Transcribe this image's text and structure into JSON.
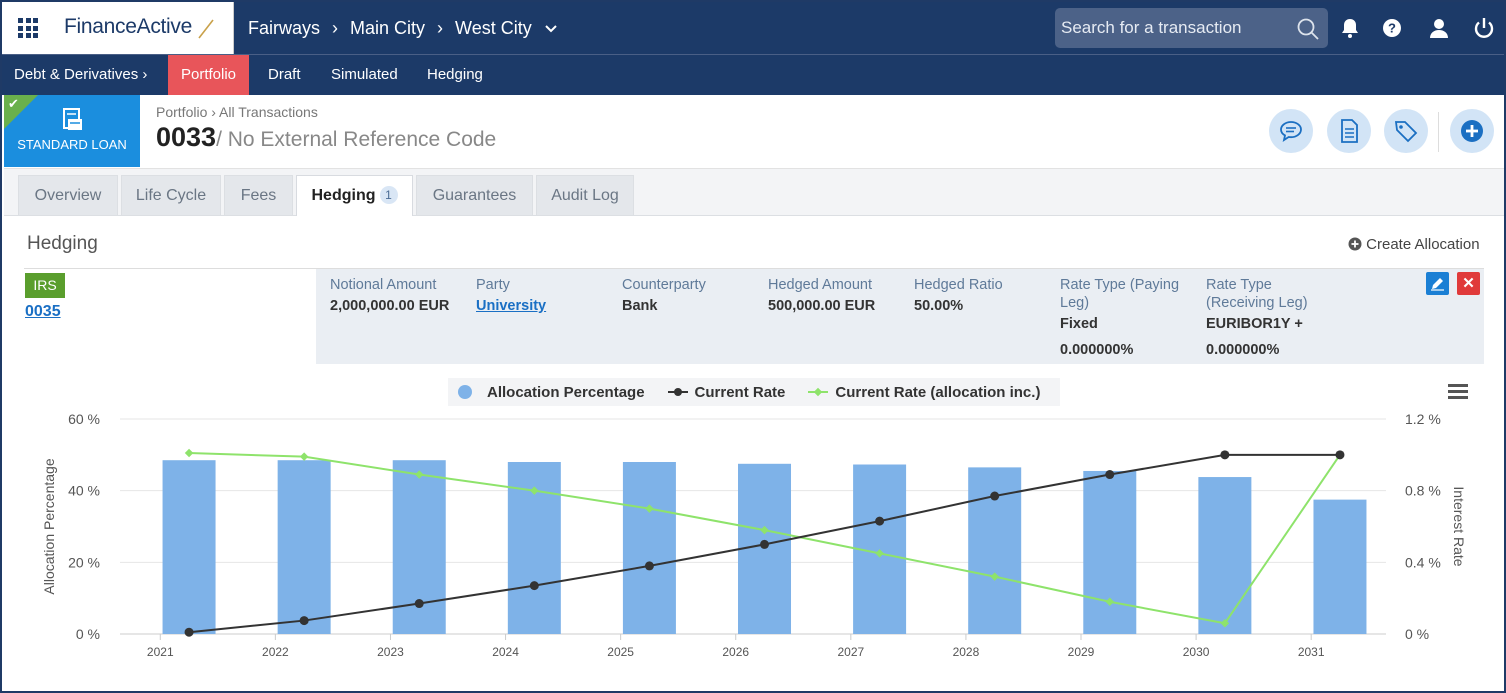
{
  "app": {
    "logo": "FinanceActive",
    "breadcrumb": [
      "Fairways",
      "Main City",
      "West City"
    ]
  },
  "search": {
    "placeholder": "Search for a transaction"
  },
  "nav": {
    "module": "Debt & Derivatives",
    "items": [
      "Portfolio",
      "Draft",
      "Simulated",
      "Hedging"
    ],
    "active": "Portfolio"
  },
  "header": {
    "badge": "STANDARD LOAN",
    "breadcrumb": "Portfolio › All Transactions",
    "code": "0033",
    "subtitle": "/ No External Reference Code"
  },
  "tabs": [
    {
      "label": "Overview"
    },
    {
      "label": "Life Cycle"
    },
    {
      "label": "Fees"
    },
    {
      "label": "Hedging",
      "count": "1"
    },
    {
      "label": "Guarantees"
    },
    {
      "label": "Audit Log"
    }
  ],
  "section": {
    "title": "Hedging",
    "create": "Create Allocation"
  },
  "hedge": {
    "type": "IRS",
    "id": "0035",
    "fields": [
      {
        "label": "Notional Amount",
        "value": "2,000,000.00 EUR"
      },
      {
        "label": "Party",
        "value": "University"
      },
      {
        "label": "Counterparty",
        "value": "Bank"
      },
      {
        "label": "Hedged Amount",
        "value": "500,000.00 EUR"
      },
      {
        "label": "Hedged Ratio",
        "value": "50.00%"
      },
      {
        "label": "Rate Type (Paying Leg)",
        "value": "Fixed",
        "value2": "0.000000%"
      },
      {
        "label": "Rate Type (Receiving Leg)",
        "value": "EURIBOR1Y +",
        "value2": "0.000000%"
      }
    ]
  },
  "colors": {
    "navy": "#1c3a68",
    "active": "#e8555a",
    "bar": "#7eb2e8",
    "rate": "#333333",
    "alloc_rate": "#8ee36b"
  },
  "chart_data": {
    "type": "bar",
    "categories": [
      "2021",
      "2022",
      "2023",
      "2024",
      "2025",
      "2026",
      "2027",
      "2028",
      "2029",
      "2030",
      "2031"
    ],
    "series": [
      {
        "name": "Allocation Percentage",
        "type": "bar",
        "axis": "left",
        "values": [
          48.5,
          48.5,
          48.5,
          48.0,
          48.0,
          47.5,
          47.3,
          46.5,
          45.5,
          43.8,
          37.5
        ]
      },
      {
        "name": "Current Rate",
        "type": "line",
        "axis": "right",
        "values": [
          0.01,
          0.075,
          0.17,
          0.27,
          0.38,
          0.5,
          0.63,
          0.77,
          0.89,
          1.0,
          1.0
        ]
      },
      {
        "name": "Current Rate (allocation inc.)",
        "type": "line",
        "axis": "right",
        "values": [
          1.01,
          0.99,
          0.89,
          0.8,
          0.7,
          0.58,
          0.45,
          0.32,
          0.18,
          0.06,
          1.0
        ]
      }
    ],
    "ylabel": "Allocation Percentage",
    "y2label": "Interest Rate",
    "ylim": [
      0,
      60
    ],
    "y2lim": [
      0,
      1.2
    ],
    "yticks": [
      "0 %",
      "20 %",
      "40 %",
      "60 %"
    ],
    "y2ticks": [
      "0 %",
      "0.4 %",
      "0.8 %",
      "1.2 %"
    ],
    "grid": true,
    "legend": "top-center"
  }
}
